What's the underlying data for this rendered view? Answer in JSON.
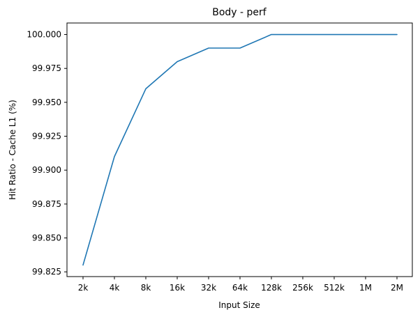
{
  "chart_data": {
    "type": "line",
    "title": "Body - perf",
    "xlabel": "Input Size",
    "ylabel": "Hit Ratio - Cache L1 (%)",
    "categories": [
      "2k",
      "4k",
      "8k",
      "16k",
      "32k",
      "64k",
      "128k",
      "256k",
      "512k",
      "1M",
      "2M"
    ],
    "series": [
      {
        "values": [
          99.83,
          99.91,
          99.96,
          99.98,
          99.99,
          99.99,
          100.0,
          100.0,
          100.0,
          100.0,
          100.0
        ]
      }
    ],
    "yticks": [
      "99.825",
      "99.850",
      "99.875",
      "99.900",
      "99.925",
      "99.950",
      "99.975",
      "100.000"
    ],
    "ylim": [
      99.8215,
      100.0085
    ],
    "grid": false,
    "line_color": "#1f77b4"
  }
}
